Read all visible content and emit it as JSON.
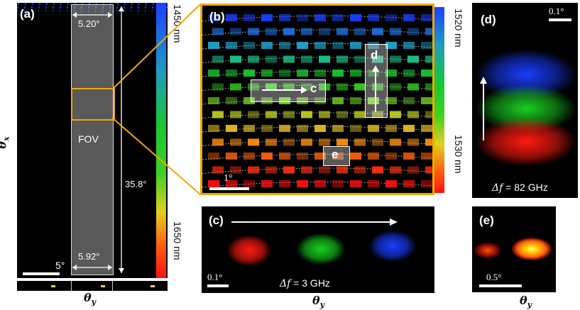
{
  "panel_a": {
    "label": "(a)",
    "fov_label": "FOV",
    "width_top": "5.20°",
    "width_bottom": "5.92°",
    "height": "35.8°",
    "scale_bar": "5°",
    "colorbar_top": "1450 nm",
    "colorbar_bottom": "1650 nm",
    "y_axis": "θ",
    "y_axis_sub": "x",
    "x_axis": "θ",
    "x_axis_sub": "y"
  },
  "panel_b": {
    "label": "(b)",
    "box_c": "c",
    "box_d": "d",
    "box_e": "e",
    "scale_bar": "1°",
    "colorbar_top": "1520 nm",
    "colorbar_bottom": "1530 nm"
  },
  "panel_c": {
    "label": "(c)",
    "scale_bar": "0.1°",
    "delta_prefix": "Δf",
    "delta_value": " = 3 GHz",
    "x_axis": "θ",
    "x_axis_sub": "y"
  },
  "panel_d": {
    "label": "(d)",
    "scale_bar": "0.1°",
    "delta_prefix": "Δf",
    "delta_value": " = 82 GHz"
  },
  "panel_e": {
    "label": "(e)",
    "scale_bar": "0.5°",
    "x_axis": "θ",
    "x_axis_sub": "y"
  },
  "colors": {
    "highlight": "#f0a800",
    "red": "#ff1a10",
    "green": "#19d020",
    "blue": "#1a3cff",
    "yellow": "#ffd400"
  }
}
